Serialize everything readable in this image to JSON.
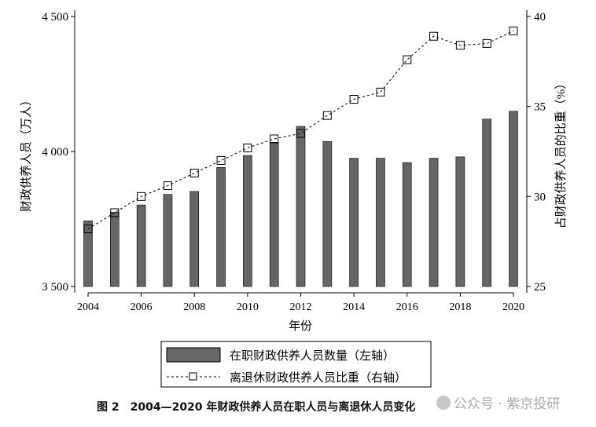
{
  "chart_data": {
    "type": "bar+line",
    "xlabel": "年份",
    "ylabel_left": "财政供养人员（万人）",
    "ylabel_right": "占财政供养人员的比重（%）",
    "x": [
      2004,
      2005,
      2006,
      2007,
      2008,
      2009,
      2010,
      2011,
      2012,
      2013,
      2014,
      2015,
      2016,
      2017,
      2018,
      2019,
      2020
    ],
    "x_ticks": [
      "2004",
      "2006",
      "2008",
      "2010",
      "2012",
      "2014",
      "2016",
      "2018",
      "2020"
    ],
    "ylim_left": [
      3500,
      4500
    ],
    "yticks_left": [
      "3 500",
      "4 000",
      "4 500"
    ],
    "ylim_right": [
      25,
      40
    ],
    "yticks_right": [
      "25",
      "30",
      "35",
      "40"
    ],
    "series": [
      {
        "name": "在职财政供养人员数量（左轴）",
        "type": "bar",
        "axis": "left",
        "color": "#666666",
        "values": [
          3743,
          3775,
          3802,
          3841,
          3852,
          3941,
          3985,
          4034,
          4093,
          4037,
          3975,
          3975,
          3959,
          3975,
          3980,
          4120,
          4149
        ]
      },
      {
        "name": "离退休财政供养人员比重（右轴）",
        "type": "line",
        "axis": "right",
        "style": "dashed",
        "marker": "hollow-square",
        "color": "#000000",
        "values": [
          28.2,
          29.1,
          30.0,
          30.6,
          31.3,
          32.0,
          32.7,
          33.2,
          33.5,
          34.5,
          35.4,
          35.8,
          37.6,
          38.9,
          38.4,
          38.5,
          39.2
        ]
      }
    ],
    "legend_position": "bottom",
    "grid": false
  },
  "caption": "图 2　2004—2020 年财政供养人员在职人员与离退休人员变化",
  "watermark": "公众号 · 紫京投研"
}
